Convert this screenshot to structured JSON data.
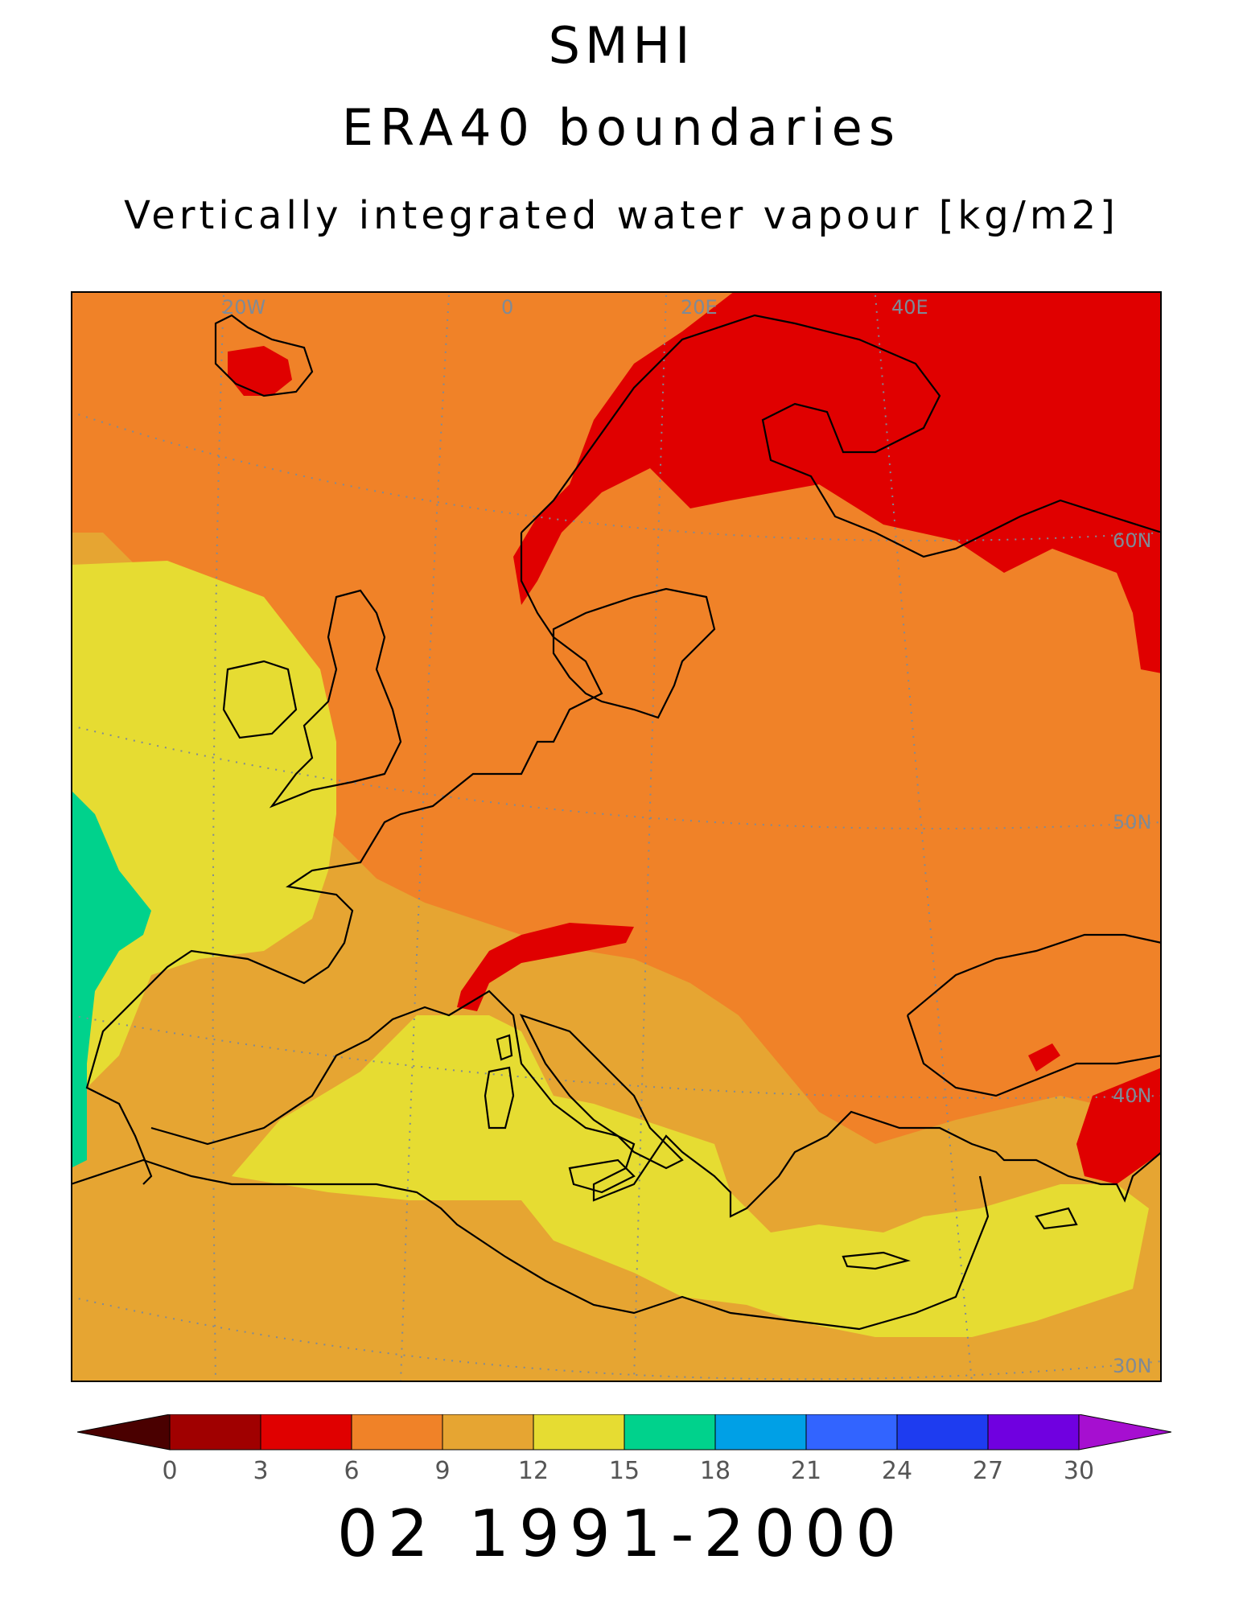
{
  "header": {
    "line1": "SMHI",
    "line2": "ERA40 boundaries",
    "line3": "Vertically integrated water vapour [kg/m2]"
  },
  "map": {
    "projection_labels": {
      "meridians": [
        "20W",
        "0",
        "20E",
        "40E"
      ],
      "parallels": [
        "60N",
        "50N",
        "40N",
        "30N"
      ]
    },
    "coastline_color": "#000000",
    "gridline_color": "#7f8a96"
  },
  "colorbar": {
    "ticks": [
      "0",
      "3",
      "6",
      "9",
      "12",
      "15",
      "18",
      "21",
      "24",
      "27",
      "30"
    ],
    "under_color": "#4a0000",
    "over_color": "#a60fd0",
    "bins": [
      {
        "range": "0-3",
        "color": "#a00000"
      },
      {
        "range": "3-6",
        "color": "#e00000"
      },
      {
        "range": "6-9",
        "color": "#f08228"
      },
      {
        "range": "9-12",
        "color": "#e6a532"
      },
      {
        "range": "12-15",
        "color": "#e6dc32"
      },
      {
        "range": "15-18",
        "color": "#00d28c"
      },
      {
        "range": "18-21",
        "color": "#00a0e6"
      },
      {
        "range": "21-24",
        "color": "#3264ff"
      },
      {
        "range": "24-27",
        "color": "#1e3cf0"
      },
      {
        "range": "27-30",
        "color": "#7000e0"
      }
    ]
  },
  "footer": {
    "period": "02 1991-2000"
  }
}
